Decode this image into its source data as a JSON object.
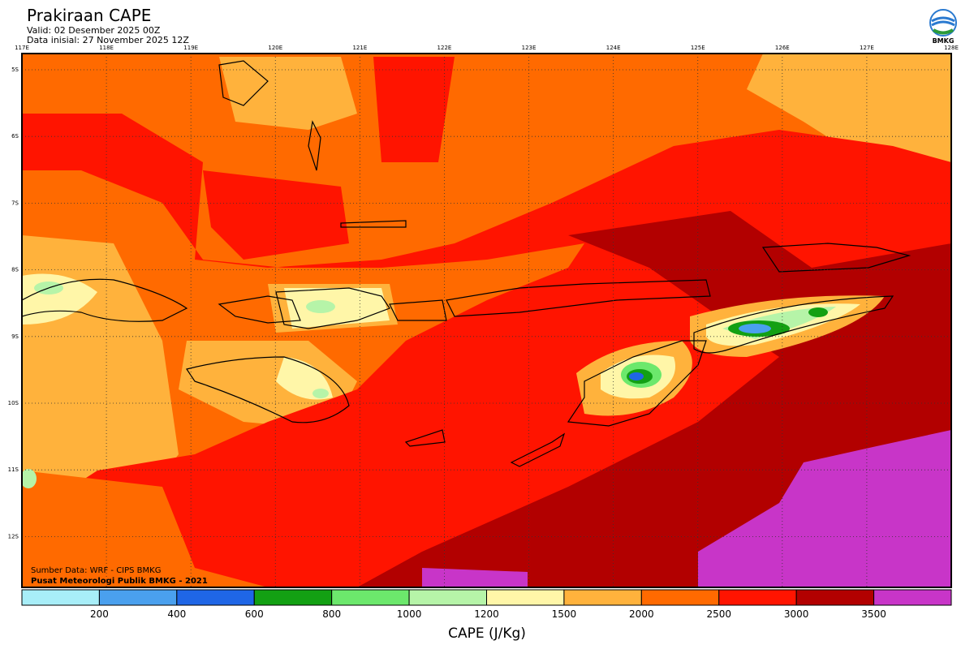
{
  "header": {
    "title": "Prakiraan CAPE",
    "valid": "Valid: 02 Desember 2025 00Z",
    "init": "Data inisial: 27 November 2025 12Z",
    "logo": "BMKG"
  },
  "map": {
    "lon_labels": [
      "117E",
      "118E",
      "119E",
      "120E",
      "121E",
      "122E",
      "123E",
      "124E",
      "125E",
      "126E",
      "127E",
      "128E"
    ],
    "lat_labels": [
      "5S",
      "6S",
      "7S",
      "8S",
      "9S",
      "10S",
      "11S",
      "12S"
    ],
    "source": "Sumber Data: WRF - CIPS BMKG",
    "credit": "Pusat Meteorologi Publik BMKG - 2021"
  },
  "colorbar": {
    "levels": [
      200,
      400,
      600,
      800,
      1000,
      1200,
      1500,
      2000,
      2500,
      3000,
      3500
    ],
    "colors": [
      "#a8eef8",
      "#4aa0ee",
      "#1f66e6",
      "#13a013",
      "#6ce86c",
      "#b6f4a8",
      "#fff6a8",
      "#ffb23c",
      "#ff6a00",
      "#ff1400",
      "#b20000",
      "#c835c8"
    ],
    "title": "CAPE (J/Kg)"
  }
}
